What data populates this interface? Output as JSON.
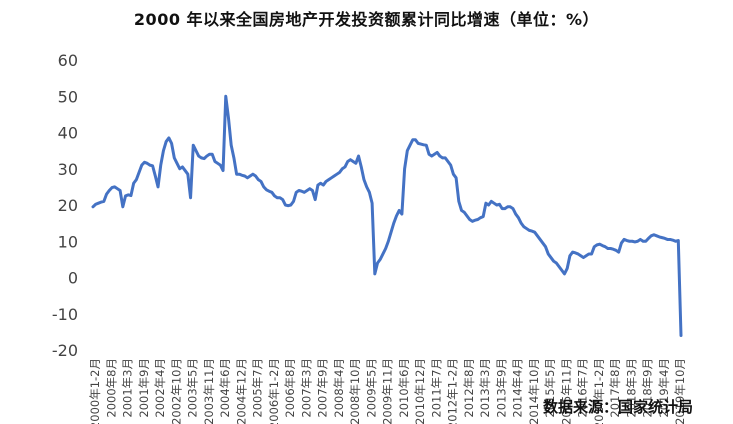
{
  "chart_data": {
    "type": "line",
    "title": "2000 年以来全国房地产开发投资额累计同比增速（单位：%）",
    "source": "数据来源：国家统计局",
    "ylim": [
      -20,
      60
    ],
    "yticks": [
      60,
      50,
      40,
      30,
      20,
      10,
      0,
      -10,
      -20
    ],
    "grid": false,
    "line_color": "#4472C4",
    "x_labels": [
      "2000年1-2月",
      "2000年8月",
      "2001年3月",
      "2001年9月",
      "2002年4月",
      "2002年10月",
      "2003年5月",
      "2003年11月",
      "2004年6月",
      "2004年12月",
      "2005年7月",
      "2006年1-2月",
      "2006年8月",
      "2007年3月",
      "2007年9月",
      "2008年4月",
      "2008年10月",
      "2009年5月",
      "2009年11月",
      "2010年6月",
      "2010年12月",
      "2011年7月",
      "2012年1-2月",
      "2012年8月",
      "2013年3月",
      "2013年9月",
      "2014年4月",
      "2014年10月",
      "2015年5月",
      "2015年11月",
      "2016年7月",
      "2017年1-2月",
      "2017年8月",
      "2018年3月",
      "2018年9月",
      "2019年4月",
      "2019年10月"
    ],
    "series": [
      {
        "values": [
          19.5,
          20.2,
          20.5,
          20.8,
          21.0,
          23.0,
          24.0,
          24.8,
          25.0,
          24.5,
          24.0,
          19.5,
          22.5,
          22.8,
          22.6,
          26.0,
          27.0,
          29.0,
          31.0,
          31.8,
          31.5,
          31.0,
          30.8,
          28.0,
          25.0,
          31.0,
          35.0,
          37.5,
          38.5,
          37.0,
          33.0,
          31.5,
          30.0,
          30.5,
          29.5,
          28.5,
          22.0,
          36.5,
          35.0,
          33.5,
          33.0,
          32.8,
          33.5,
          34.0,
          34.0,
          32.0,
          31.5,
          31.0,
          29.5,
          50.0,
          44.0,
          36.5,
          33.0,
          28.5,
          28.5,
          28.2,
          28.0,
          27.5,
          28.0,
          28.5,
          28.0,
          27.0,
          26.5,
          25.0,
          24.2,
          23.8,
          23.5,
          22.5,
          22.0,
          22.0,
          21.5,
          20.0,
          19.8,
          20.0,
          21.0,
          23.5,
          24.0,
          23.8,
          23.5,
          24.0,
          24.5,
          24.0,
          21.5,
          25.5,
          26.0,
          25.5,
          26.5,
          27.0,
          27.5,
          28.0,
          28.5,
          29.0,
          30.0,
          30.5,
          32.0,
          32.5,
          32.0,
          31.5,
          33.5,
          30.5,
          27.0,
          25.0,
          23.5,
          20.5,
          1.0,
          4.0,
          5.0,
          6.5,
          8.0,
          10.0,
          12.5,
          15.0,
          17.0,
          18.5,
          17.5,
          30.0,
          35.0,
          36.5,
          38.0,
          38.0,
          37.0,
          36.8,
          36.6,
          36.5,
          34.0,
          33.5,
          34.0,
          34.5,
          33.5,
          33.0,
          33.0,
          32.0,
          31.0,
          28.5,
          27.5,
          21.0,
          18.5,
          18.0,
          17.0,
          16.0,
          15.5,
          15.8,
          16.0,
          16.5,
          16.8,
          20.5,
          20.0,
          21.0,
          20.5,
          20.0,
          20.2,
          19.0,
          19.0,
          19.5,
          19.5,
          19.0,
          17.5,
          16.5,
          15.0,
          14.0,
          13.5,
          13.0,
          12.8,
          12.5,
          11.5,
          10.5,
          9.5,
          8.5,
          6.5,
          5.5,
          4.5,
          4.0,
          3.0,
          2.0,
          1.0,
          2.5,
          6.0,
          7.0,
          6.8,
          6.5,
          6.0,
          5.5,
          6.0,
          6.5,
          6.5,
          8.5,
          9.0,
          9.2,
          8.8,
          8.5,
          8.0,
          8.0,
          7.8,
          7.5,
          7.0,
          9.5,
          10.5,
          10.2,
          10.0,
          10.0,
          9.8,
          10.0,
          10.5,
          10.0,
          10.0,
          10.8,
          11.5,
          11.8,
          11.5,
          11.2,
          11.0,
          10.8,
          10.5,
          10.5,
          10.3,
          10.0,
          10.2,
          -16.0
        ]
      }
    ]
  }
}
